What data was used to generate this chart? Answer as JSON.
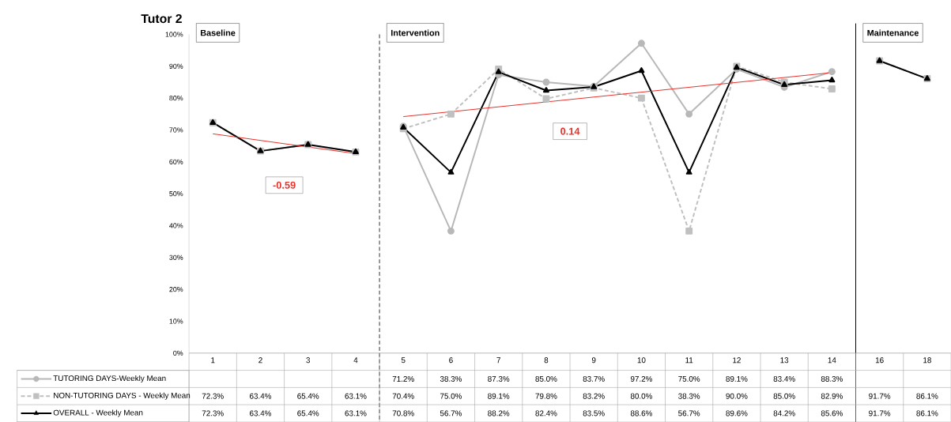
{
  "chart_data": {
    "type": "line",
    "title": "Tutor 2",
    "categories": [
      "1",
      "2",
      "3",
      "4",
      "5",
      "6",
      "7",
      "8",
      "9",
      "10",
      "11",
      "12",
      "13",
      "14",
      "16",
      "18"
    ],
    "series": [
      {
        "name": "TUTORING DAYS-Weekly Mean",
        "color": "#b8b8b8",
        "marker": "circle",
        "line_style": "solid",
        "values": [
          null,
          null,
          null,
          null,
          71.2,
          38.3,
          87.3,
          85.0,
          83.7,
          97.2,
          75.0,
          89.1,
          83.4,
          88.3,
          null,
          null
        ],
        "value_labels": [
          null,
          null,
          null,
          null,
          "71.2%",
          "38.3%",
          "87.3%",
          "85.0%",
          "83.7%",
          "97.2%",
          "75.0%",
          "89.1%",
          "83.4%",
          "88.3%",
          null,
          null
        ]
      },
      {
        "name": "NON-TUTORING DAYS - Weekly Mean",
        "color": "#c0c0c0",
        "marker": "square",
        "line_style": "dashed",
        "values": [
          72.3,
          63.4,
          65.4,
          63.1,
          70.4,
          75.0,
          89.1,
          79.8,
          83.2,
          80.0,
          38.3,
          90.0,
          85.0,
          82.9,
          91.7,
          86.1
        ],
        "value_labels": [
          "72.3%",
          "63.4%",
          "65.4%",
          "63.1%",
          "70.4%",
          "75.0%",
          "89.1%",
          "79.8%",
          "83.2%",
          "80.0%",
          "38.3%",
          "90.0%",
          "85.0%",
          "82.9%",
          "91.7%",
          "86.1%"
        ]
      },
      {
        "name": "OVERALL - Weekly Mean",
        "color": "#000000",
        "marker": "triangle",
        "line_style": "solid",
        "values": [
          72.3,
          63.4,
          65.4,
          63.1,
          70.8,
          56.7,
          88.2,
          82.4,
          83.5,
          88.6,
          56.7,
          89.6,
          84.2,
          85.6,
          91.7,
          86.1
        ],
        "value_labels": [
          "72.3%",
          "63.4%",
          "65.4%",
          "63.1%",
          "70.8%",
          "56.7%",
          "88.2%",
          "82.4%",
          "83.5%",
          "88.6%",
          "56.7%",
          "89.6%",
          "84.2%",
          "85.6%",
          "91.7%",
          "86.1%"
        ]
      },
      {
        "type": "line",
        "color": "#e8312a",
        "marker": "none",
        "line_style": "solid",
        "values": [
          68.8,
          null,
          null,
          62.6,
          null,
          null,
          null,
          null,
          null,
          null,
          null,
          null,
          null,
          null,
          null,
          null
        ]
      },
      {
        "type": "line",
        "color": "#e8312a",
        "marker": "none",
        "line_style": "solid",
        "values": [
          null,
          null,
          null,
          null,
          74.2,
          null,
          null,
          null,
          null,
          null,
          null,
          null,
          null,
          88.0,
          null,
          null
        ]
      }
    ],
    "ylim": [
      0,
      100
    ],
    "yticks": [
      {
        "value": 0,
        "label": "0%"
      },
      {
        "value": 10,
        "label": "10%"
      },
      {
        "value": 20,
        "label": "20%"
      },
      {
        "value": 30,
        "label": "30%"
      },
      {
        "value": 40,
        "label": "40%"
      },
      {
        "value": 50,
        "label": "50%"
      },
      {
        "value": 60,
        "label": "60%"
      },
      {
        "value": 70,
        "label": "70%"
      },
      {
        "value": 80,
        "label": "80%"
      },
      {
        "value": 90,
        "label": "90%"
      },
      {
        "value": 100,
        "label": "100%"
      }
    ],
    "ref_lines": [
      {
        "axis": "x",
        "value": "5",
        "label": "Intervention",
        "line_style": "dashed",
        "color": "#333333"
      },
      {
        "axis": "x",
        "value": "16",
        "label": "Maintenance",
        "line_style": "solid",
        "color": "#000000"
      }
    ],
    "annotations": [
      "Baseline",
      "-0.59",
      "0.14"
    ],
    "legend": "bottom",
    "grid": false
  }
}
